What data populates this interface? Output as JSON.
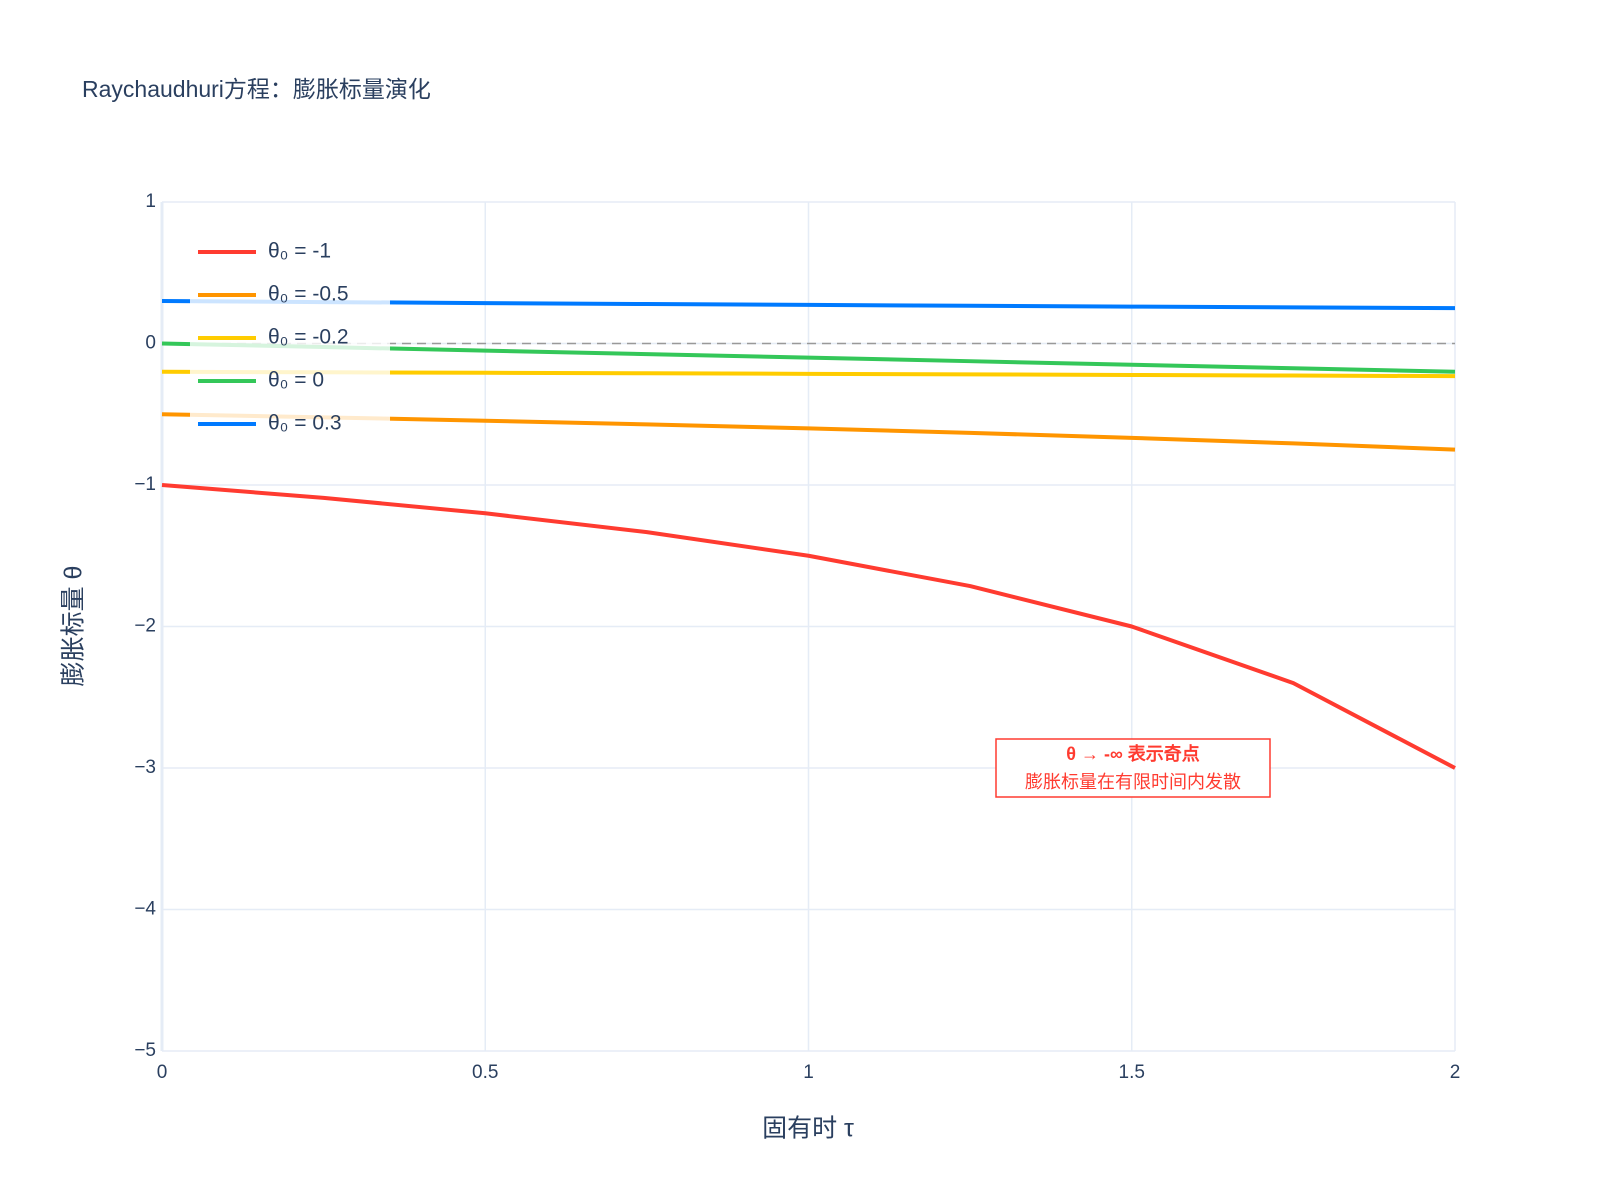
{
  "chart_data": {
    "type": "line",
    "title": "Raychaudhuri方程：膨胀标量演化",
    "x_label": "固有时 τ",
    "y_label": "膨胀标量 θ",
    "x": [
      0,
      0.25,
      0.5,
      0.75,
      1,
      1.25,
      1.5,
      1.75,
      2
    ],
    "series": [
      {
        "name": "θ₀ = -1",
        "color": "#ff3b30",
        "values": [
          -1,
          -1.0909,
          -1.2,
          -1.3333,
          -1.5,
          -1.7143,
          -2,
          -2.4,
          -3
        ]
      },
      {
        "name": "θ₀ = -0.5",
        "color": "#ff9500",
        "values": [
          -0.5,
          -0.5217,
          -0.5455,
          -0.5714,
          -0.6,
          -0.6316,
          -0.6667,
          -0.7059,
          -0.75
        ]
      },
      {
        "name": "θ₀ = -0.2",
        "color": "#ffcc00",
        "values": [
          -0.2,
          -0.2034,
          -0.2069,
          -0.2105,
          -0.2143,
          -0.2182,
          -0.2222,
          -0.2264,
          -0.2308
        ]
      },
      {
        "name": "θ₀ = 0",
        "color": "#34c759",
        "values": [
          0,
          -0.025,
          -0.05,
          -0.075,
          -0.1,
          -0.125,
          -0.15,
          -0.175,
          -0.2
        ]
      },
      {
        "name": "θ₀ = 0.3",
        "color": "#007aff",
        "values": [
          0.3,
          0.2927,
          0.2857,
          0.2791,
          0.2727,
          0.2667,
          0.2609,
          0.2553,
          0.25
        ]
      }
    ],
    "xlim": [
      0,
      2
    ],
    "ylim": [
      -5,
      1
    ],
    "xticks": [
      0,
      0.5,
      1,
      1.5,
      2
    ],
    "yticks": [
      {
        "value": -5,
        "label": "−5"
      },
      {
        "value": -4,
        "label": "−4"
      },
      {
        "value": -3,
        "label": "−3"
      },
      {
        "value": -2,
        "label": "−2"
      },
      {
        "value": -1,
        "label": "−1"
      },
      0,
      1
    ],
    "reference_line": 0,
    "grid": true,
    "legend": "upper-left",
    "annotation": [
      "θ → -∞ 表示奇点",
      "膨胀标量在有限时间内发散"
    ],
    "annotation_color": "#ff3b30"
  }
}
